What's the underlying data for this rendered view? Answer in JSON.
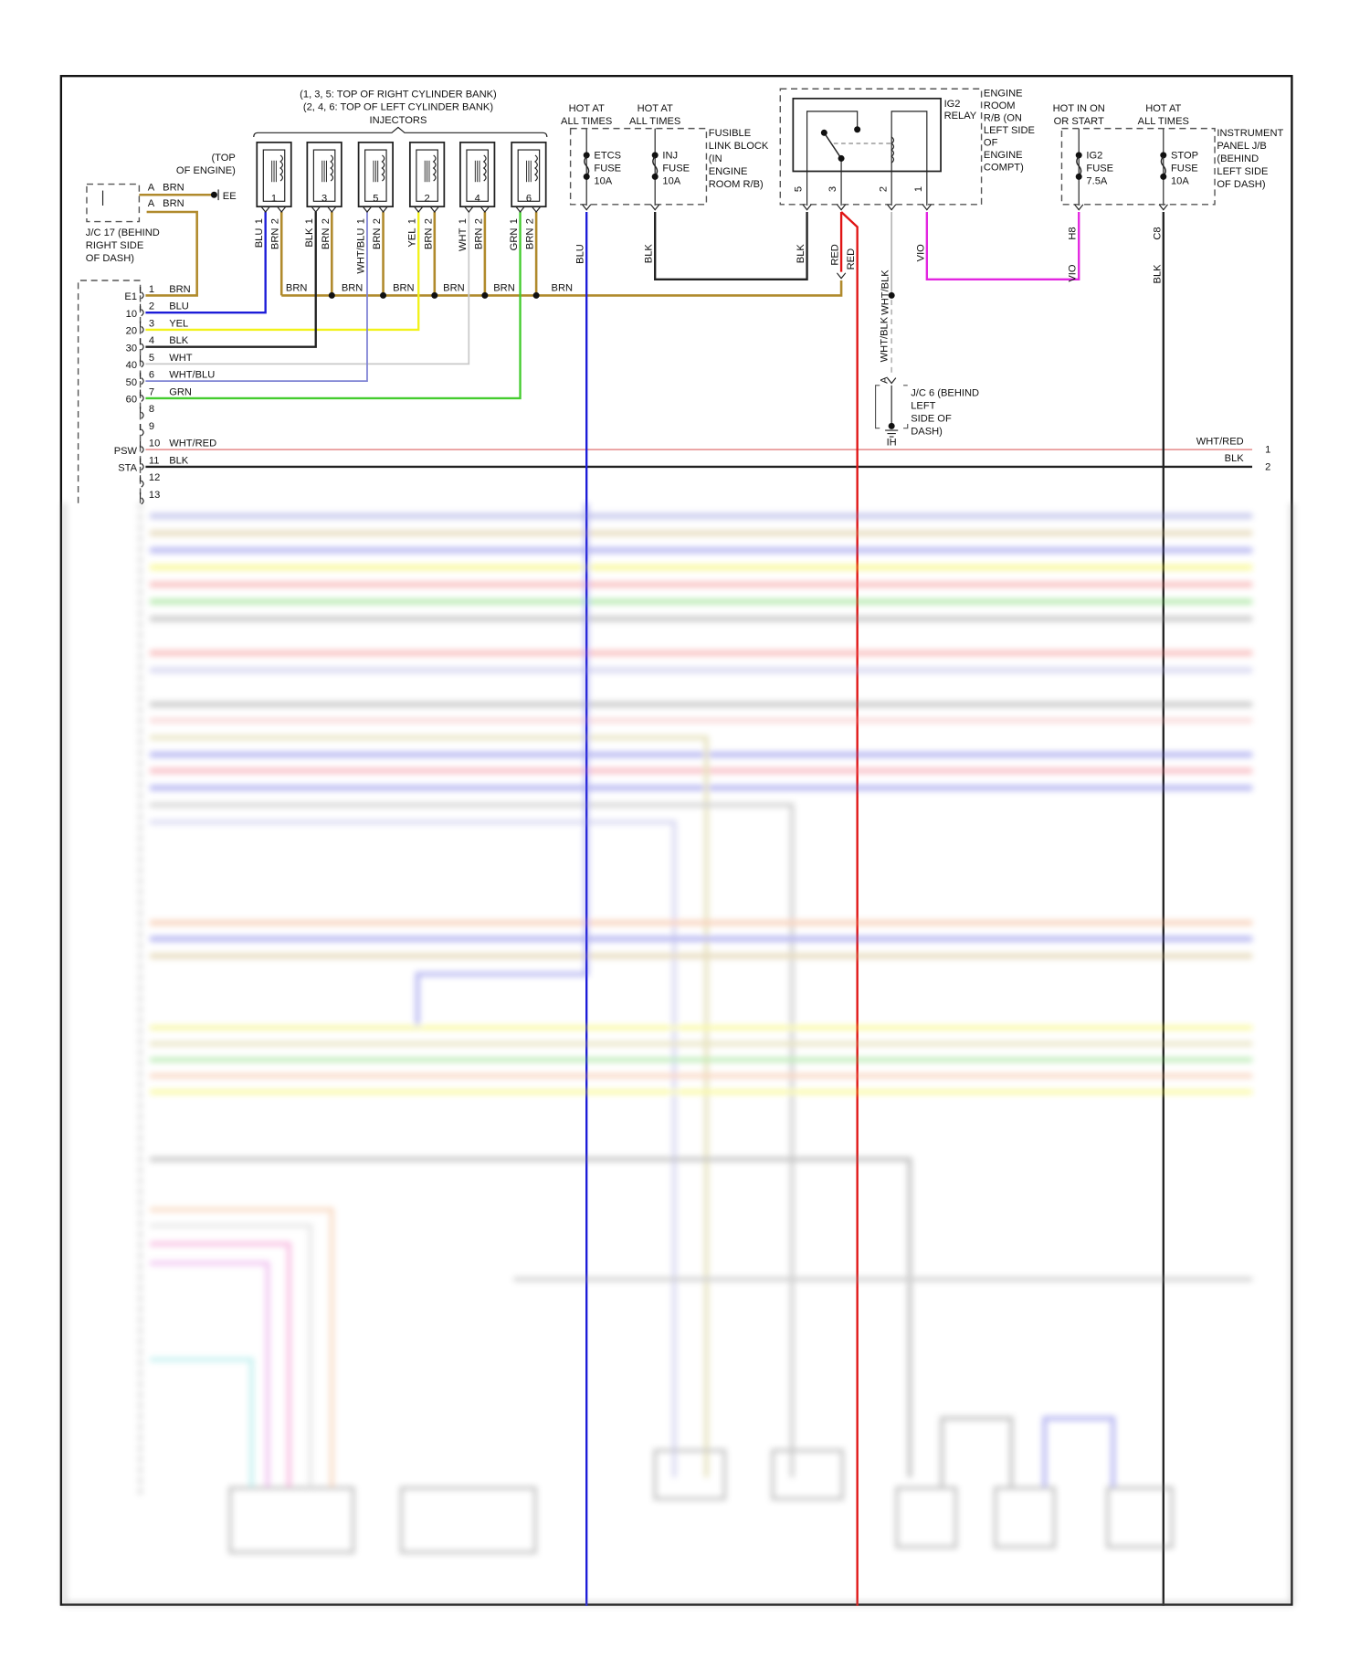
{
  "injectors": {
    "title_lines": [
      "(1, 3, 5: TOP OF RIGHT CYLINDER BANK)",
      "(2, 4, 6: TOP OF LEFT CYLINDER BANK)",
      "INJECTORS"
    ],
    "items": [
      {
        "number": "1",
        "pin1_color": "BLU",
        "pin2_color": "BRN",
        "pin1": "1",
        "pin2": "2"
      },
      {
        "number": "3",
        "pin1_color": "BLK",
        "pin2_color": "BRN",
        "pin1": "1",
        "pin2": "2"
      },
      {
        "number": "5",
        "pin1_color": "WHT/BLU",
        "pin2_color": "BRN",
        "pin1": "1",
        "pin2": "2"
      },
      {
        "number": "2",
        "pin1_color": "YEL",
        "pin2_color": "BRN",
        "pin1": "1",
        "pin2": "2"
      },
      {
        "number": "4",
        "pin1_color": "WHT",
        "pin2_color": "BRN",
        "pin1": "1",
        "pin2": "2"
      },
      {
        "number": "6",
        "pin1_color": "GRN",
        "pin2_color": "BRN",
        "pin1": "1",
        "pin2": "2"
      }
    ],
    "bus_labels": [
      "BRN",
      "BRN",
      "BRN",
      "BRN",
      "BRN",
      "BRN"
    ]
  },
  "jc17": {
    "top_note": [
      "(TOP",
      "OF ENGINE)"
    ],
    "ground": "EE",
    "pins": [
      {
        "pin": "A",
        "color": "BRN"
      },
      {
        "pin": "A",
        "color": "BRN"
      }
    ],
    "label_lines": [
      "J/C 17 (BEHIND",
      "RIGHT SIDE",
      "OF DASH)"
    ]
  },
  "fusible_link_block": {
    "fuses": [
      {
        "hot": [
          "HOT AT",
          "ALL TIMES"
        ],
        "lines": [
          "ETCS",
          "FUSE",
          "10A"
        ],
        "wire": "BLU"
      },
      {
        "hot": [
          "HOT AT",
          "ALL TIMES"
        ],
        "lines": [
          "INJ",
          "FUSE",
          "10A"
        ],
        "wire": "BLK"
      }
    ],
    "label_lines": [
      "FUSIBLE",
      "LINK BLOCK",
      "(IN",
      "ENGINE",
      "ROOM R/B)"
    ]
  },
  "relay": {
    "name_lines": [
      "IG2",
      "RELAY"
    ],
    "location_lines": [
      "ENGINE",
      "ROOM",
      "R/B (ON",
      "LEFT SIDE",
      "OF",
      "ENGINE",
      "COMPT)"
    ],
    "pins": [
      {
        "pin": "5",
        "wire": "BLK"
      },
      {
        "pin": "3",
        "wire": "RED"
      },
      {
        "pin": "2",
        "wire": "WHT/BLK"
      },
      {
        "pin": "1",
        "wire": "VIO"
      }
    ],
    "extra_wire": "RED"
  },
  "instrument_panel_jb": {
    "fuses": [
      {
        "hot": [
          "HOT IN ON",
          "OR START"
        ],
        "lines": [
          "IG2",
          "FUSE",
          "7.5A"
        ],
        "pin": "H8",
        "wire": "VIO"
      },
      {
        "hot": [
          "HOT AT",
          "ALL TIMES"
        ],
        "lines": [
          "STOP",
          "FUSE",
          "10A"
        ],
        "pin": "C8",
        "wire": "BLK"
      }
    ],
    "label_lines": [
      "INSTRUMENT",
      "PANEL J/B",
      "(BEHIND",
      "LEFT SIDE",
      "OF DASH)"
    ]
  },
  "jc6": {
    "pin": "A",
    "wire": "WHT/BLK",
    "label_lines": [
      "J/C 6 (BEHIND",
      "LEFT",
      "SIDE OF",
      "DASH)"
    ],
    "ground": "IH"
  },
  "ecm_connector": {
    "pins": [
      {
        "label": "E1",
        "pin": "1",
        "color": "BRN"
      },
      {
        "label": "10",
        "pin": "2",
        "color": "BLU"
      },
      {
        "label": "20",
        "pin": "3",
        "color": "YEL"
      },
      {
        "label": "30",
        "pin": "4",
        "color": "BLK"
      },
      {
        "label": "40",
        "pin": "5",
        "color": "WHT"
      },
      {
        "label": "50",
        "pin": "6",
        "color": "WHT/BLU"
      },
      {
        "label": "60",
        "pin": "7",
        "color": "GRN"
      },
      {
        "label": "",
        "pin": "8",
        "color": ""
      },
      {
        "label": "",
        "pin": "9",
        "color": ""
      },
      {
        "label": "PSW",
        "pin": "10",
        "color": "WHT/RED"
      },
      {
        "label": "STA",
        "pin": "11",
        "color": "BLK"
      },
      {
        "label": "",
        "pin": "12",
        "color": ""
      },
      {
        "label": "",
        "pin": "13",
        "color": ""
      }
    ]
  },
  "right_connector": {
    "pins": [
      {
        "pin": "1",
        "color": "WHT/RED"
      },
      {
        "pin": "2",
        "color": "BLK"
      }
    ]
  },
  "wire_colors": {
    "BRN": "#b08a2c",
    "BLU": "#1c1cd8",
    "YEL": "#f2f21a",
    "BLK": "#222222",
    "WHT": "#c9c9c9",
    "WHT/BLU": "#7f83d4",
    "GRN": "#43cc2e",
    "RED": "#e01414",
    "VIO": "#e225e0",
    "WHT/RED": "#e99a9a",
    "WHT/BLK": "#b8b8b8"
  }
}
